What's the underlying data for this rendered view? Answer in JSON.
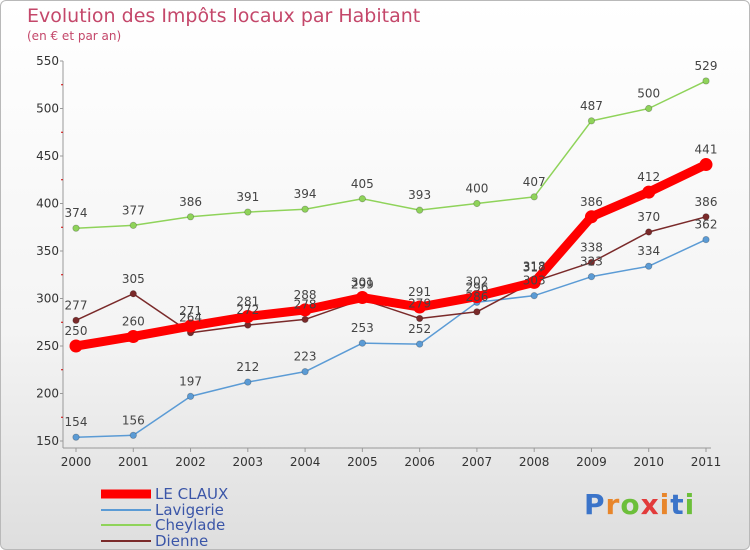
{
  "title": "Evolution des Impôts locaux par Habitant",
  "subtitle": "(en € et par an)",
  "logo": "Proxiti",
  "colors": {
    "LE CLAUX": "#ff0000",
    "Lavigerie": "#5b9bd5",
    "Cheylade": "#8fd35a",
    "Dienne": "#7a2a2a"
  },
  "chart_data": {
    "type": "line",
    "title": "Evolution des Impôts locaux par Habitant",
    "subtitle": "(en € et par an)",
    "xlabel": "",
    "ylabel": "",
    "categories": [
      "2000",
      "2001",
      "2002",
      "2003",
      "2004",
      "2005",
      "2006",
      "2007",
      "2008",
      "2009",
      "2010",
      "2011"
    ],
    "ylim": [
      150,
      550
    ],
    "yticks": [
      150,
      200,
      250,
      300,
      350,
      400,
      450,
      500,
      550
    ],
    "grid": false,
    "legend": "bottom-left",
    "series": [
      {
        "name": "LE CLAUX",
        "values": [
          250,
          260,
          271,
          281,
          288,
          301,
          291,
          302,
          317,
          386,
          412,
          441
        ]
      },
      {
        "name": "Lavigerie",
        "values": [
          154,
          156,
          197,
          212,
          223,
          253,
          252,
          296,
          303,
          323,
          334,
          362
        ]
      },
      {
        "name": "Cheylade",
        "values": [
          374,
          377,
          386,
          391,
          394,
          405,
          393,
          400,
          407,
          487,
          500,
          529
        ]
      },
      {
        "name": "Dienne",
        "values": [
          277,
          305,
          264,
          272,
          278,
          299,
          279,
          286,
          318,
          338,
          370,
          386
        ]
      }
    ]
  }
}
